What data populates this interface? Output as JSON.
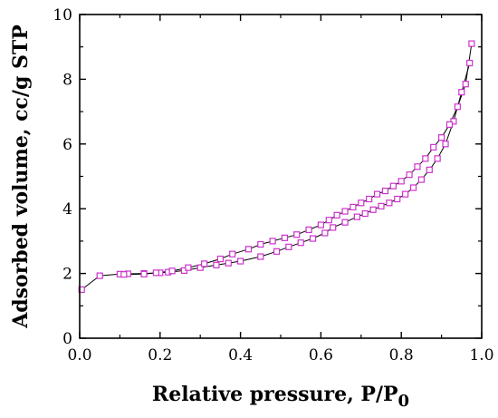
{
  "chart_data": {
    "type": "line",
    "title": "",
    "xlabel": "Relative pressure, P/P",
    "xlabel_subscript": "0",
    "ylabel": "Adsorbed volume, cc/g STP",
    "xlim": [
      0.0,
      1.0
    ],
    "ylim": [
      0,
      10
    ],
    "xticks": [
      "0.0",
      "0.2",
      "0.4",
      "0.6",
      "0.8",
      "1.0"
    ],
    "yticks": [
      "0",
      "2",
      "4",
      "6",
      "8",
      "10"
    ],
    "grid": false,
    "legend": "none",
    "marker": "open-square",
    "colors": {
      "marker": "#cc33cc",
      "line": "#000000",
      "axis": "#000000"
    },
    "series": [
      {
        "x": [
          0.005,
          0.05,
          0.1,
          0.12,
          0.16,
          0.2,
          0.22,
          0.26,
          0.3,
          0.34,
          0.37,
          0.4,
          0.45,
          0.49,
          0.52,
          0.55,
          0.58,
          0.61,
          0.63,
          0.66,
          0.69,
          0.71,
          0.73,
          0.75,
          0.77,
          0.79,
          0.81,
          0.83,
          0.85,
          0.87,
          0.89,
          0.91,
          0.93,
          0.95,
          0.97
        ],
        "y": [
          1.5,
          1.93,
          1.98,
          1.99,
          2.0,
          2.02,
          2.04,
          2.09,
          2.18,
          2.26,
          2.32,
          2.38,
          2.52,
          2.68,
          2.82,
          2.95,
          3.08,
          3.25,
          3.42,
          3.58,
          3.75,
          3.85,
          3.97,
          4.08,
          4.18,
          4.3,
          4.45,
          4.65,
          4.9,
          5.2,
          5.55,
          6.0,
          6.7,
          7.6,
          8.5
        ]
      },
      {
        "x": [
          0.975,
          0.96,
          0.94,
          0.92,
          0.9,
          0.88,
          0.86,
          0.84,
          0.82,
          0.8,
          0.78,
          0.76,
          0.74,
          0.72,
          0.7,
          0.68,
          0.66,
          0.64,
          0.62,
          0.6,
          0.57,
          0.54,
          0.51,
          0.48,
          0.45,
          0.42,
          0.38,
          0.35,
          0.31,
          0.27,
          0.23,
          0.19,
          0.16,
          0.11
        ],
        "y": [
          9.1,
          7.85,
          7.15,
          6.6,
          6.2,
          5.9,
          5.55,
          5.3,
          5.05,
          4.85,
          4.7,
          4.55,
          4.45,
          4.3,
          4.18,
          4.05,
          3.92,
          3.8,
          3.65,
          3.5,
          3.35,
          3.2,
          3.1,
          3.0,
          2.9,
          2.75,
          2.6,
          2.45,
          2.3,
          2.18,
          2.08,
          2.02,
          1.98,
          1.97
        ]
      }
    ]
  }
}
